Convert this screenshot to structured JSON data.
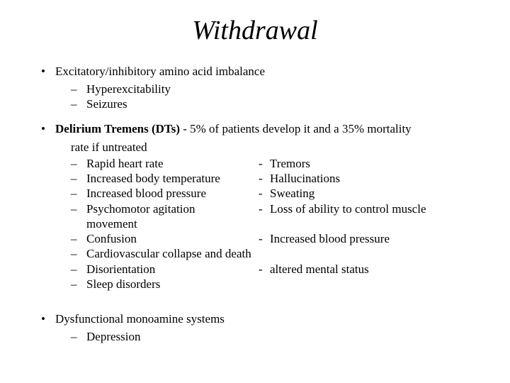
{
  "title": "Withdrawal",
  "b1": {
    "text": "Excitatory/inhibitory amino acid imbalance",
    "sub1": "Hyperexcitability",
    "sub2": "Seizures"
  },
  "b2": {
    "label": "Delirium Tremens (DTs)",
    "after": " - 5% of patients develop it and a 35% mortality",
    "lead": "rate if untreated",
    "rows": [
      {
        "l": "Rapid heart rate",
        "r": "Tremors"
      },
      {
        "l": "Increased body temperature",
        "r": "Hallucinations"
      },
      {
        "l": "Increased blood pressure",
        "r": "Sweating"
      },
      {
        "l": "Psychomotor agitation",
        "r": "Loss of ability to control muscle"
      }
    ],
    "mvmt": "movement",
    "conf": {
      "l": "Confusion",
      "r": "Increased blood pressure"
    },
    "cv": "Cardiovascular collapse and death",
    "dis": {
      "l": "Disorientation",
      "r": "altered mental status"
    },
    "sleep": "Sleep disorders"
  },
  "b3": {
    "text": "Dysfunctional monoamine systems",
    "sub1": "Depression"
  }
}
